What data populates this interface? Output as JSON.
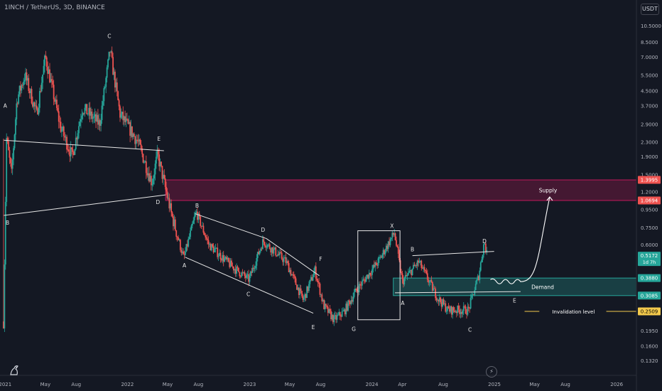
{
  "header": {
    "symbol": "1INCH",
    "sep": " / ",
    "quote": "TetherUS",
    "interval": "3D",
    "exchange": "BINANCE"
  },
  "currency_button": "USDT",
  "icons": {
    "logo": "tradingview-logo-icon",
    "goto": "lightning-icon"
  },
  "colors": {
    "bg": "#141823",
    "up": "#26a69a",
    "down": "#ef5350",
    "supply": "#c2185b",
    "demand": "#26a69a",
    "text": "#d1d4dc",
    "axis": "#b2b5be"
  },
  "chart_data": {
    "type": "candlestick",
    "scale": "log",
    "y_range": [
      0.115,
      12.2
    ],
    "x_range": [
      "2020-12-25",
      "2026-03-01"
    ],
    "x_tick_labels": [
      {
        "date": "2021-01-01",
        "label": "2021"
      },
      {
        "date": "2021-05-01",
        "label": "May"
      },
      {
        "date": "2021-08-01",
        "label": "Aug"
      },
      {
        "date": "2022-01-01",
        "label": "2022"
      },
      {
        "date": "2022-05-01",
        "label": "May"
      },
      {
        "date": "2022-08-01",
        "label": "Aug"
      },
      {
        "date": "2023-01-01",
        "label": "2023"
      },
      {
        "date": "2023-05-01",
        "label": "May"
      },
      {
        "date": "2023-08-01",
        "label": "Aug"
      },
      {
        "date": "2024-01-01",
        "label": "2024"
      },
      {
        "date": "2024-04-01",
        "label": "Apr"
      },
      {
        "date": "2024-08-01",
        "label": "Aug"
      },
      {
        "date": "2025-01-01",
        "label": "2025"
      },
      {
        "date": "2025-05-01",
        "label": "May"
      },
      {
        "date": "2025-08-01",
        "label": "Aug"
      },
      {
        "date": "2026-01-01",
        "label": "2026"
      }
    ],
    "y_tick_labels": [
      "10.5000",
      "8.5000",
      "7.0000",
      "5.5000",
      "4.5000",
      "3.7000",
      "2.9000",
      "2.3000",
      "1.9000",
      "1.5000",
      "1.2000",
      "0.9500",
      "0.7500",
      "0.6000",
      "0.4800",
      "0.3900",
      "0.3100",
      "0.2450",
      "0.1950",
      "0.1600",
      "0.1320"
    ],
    "price_badges": [
      {
        "label": "1.3995",
        "value": 1.3995,
        "color": "#ef5350"
      },
      {
        "label": "1.0694",
        "value": 1.0694,
        "color": "#ef5350"
      },
      {
        "label": "0.5172",
        "sub": "1d 7h",
        "value": 0.5172,
        "color": "#26a69a"
      },
      {
        "label": "0.3880",
        "value": 0.388,
        "color": "#26a69a"
      },
      {
        "label": "0.3085",
        "value": 0.3085,
        "color": "#26a69a"
      },
      {
        "label": "0.2509",
        "value": 0.2509,
        "color": "#f2c94c"
      }
    ],
    "zones": [
      {
        "name": "Supply",
        "top": 1.3995,
        "bottom": 1.0694,
        "from": "2022-04-25",
        "color": "#c2185b"
      },
      {
        "name": "Demand",
        "top": 0.388,
        "bottom": 0.3085,
        "from": "2024-03-05",
        "color": "#26a69a"
      }
    ],
    "invalidation": {
      "label": "Invalidation level",
      "value": 0.2509,
      "from": "2025-05-20"
    },
    "path_anchors": [
      {
        "date": "2020-12-27",
        "price": 0.22
      },
      {
        "date": "2021-01-05",
        "price": 2.4
      },
      {
        "date": "2021-01-20",
        "price": 1.5
      },
      {
        "date": "2021-02-05",
        "price": 4.0
      },
      {
        "date": "2021-03-01",
        "price": 5.5
      },
      {
        "date": "2021-04-05",
        "price": 3.3
      },
      {
        "date": "2021-05-01",
        "price": 7.0
      },
      {
        "date": "2021-06-15",
        "price": 2.8
      },
      {
        "date": "2021-07-20",
        "price": 1.9
      },
      {
        "date": "2021-08-20",
        "price": 3.6
      },
      {
        "date": "2021-10-10",
        "price": 2.9
      },
      {
        "date": "2021-11-10",
        "price": 7.6
      },
      {
        "date": "2021-12-10",
        "price": 3.3
      },
      {
        "date": "2022-02-01",
        "price": 2.3
      },
      {
        "date": "2022-03-15",
        "price": 1.35
      },
      {
        "date": "2022-04-01",
        "price": 1.95
      },
      {
        "date": "2022-05-12",
        "price": 0.9
      },
      {
        "date": "2022-06-18",
        "price": 0.5
      },
      {
        "date": "2022-07-25",
        "price": 0.92
      },
      {
        "date": "2022-09-01",
        "price": 0.6
      },
      {
        "date": "2022-11-10",
        "price": 0.45
      },
      {
        "date": "2022-12-30",
        "price": 0.38
      },
      {
        "date": "2023-02-10",
        "price": 0.63
      },
      {
        "date": "2023-04-20",
        "price": 0.48
      },
      {
        "date": "2023-06-10",
        "price": 0.29
      },
      {
        "date": "2023-07-15",
        "price": 0.43
      },
      {
        "date": "2023-08-10",
        "price": 0.27
      },
      {
        "date": "2023-09-10",
        "price": 0.225
      },
      {
        "date": "2023-10-10",
        "price": 0.25
      },
      {
        "date": "2023-11-15",
        "price": 0.33
      },
      {
        "date": "2024-01-20",
        "price": 0.48
      },
      {
        "date": "2024-03-08",
        "price": 0.7
      },
      {
        "date": "2024-04-01",
        "price": 0.37
      },
      {
        "date": "2024-05-20",
        "price": 0.48
      },
      {
        "date": "2024-07-15",
        "price": 0.3
      },
      {
        "date": "2024-08-15",
        "price": 0.255
      },
      {
        "date": "2024-10-15",
        "price": 0.255
      },
      {
        "date": "2024-11-15",
        "price": 0.4
      },
      {
        "date": "2024-12-02",
        "price": 0.63
      },
      {
        "date": "2024-12-10",
        "price": 0.517
      }
    ],
    "wave_labels": [
      {
        "text": "A",
        "date": "2021-01-01",
        "price": 3.7
      },
      {
        "text": "B",
        "date": "2021-01-08",
        "price": 0.8
      },
      {
        "text": "C",
        "date": "2021-11-08",
        "price": 9.2
      },
      {
        "text": "D",
        "date": "2022-04-02",
        "price": 1.05
      },
      {
        "text": "E",
        "date": "2022-04-05",
        "price": 2.4
      },
      {
        "text": "A",
        "date": "2022-06-20",
        "price": 0.46
      },
      {
        "text": "B",
        "date": "2022-07-28",
        "price": 1.0
      },
      {
        "text": "C",
        "date": "2022-12-28",
        "price": 0.315
      },
      {
        "text": "D",
        "date": "2023-02-10",
        "price": 0.73
      },
      {
        "text": "E",
        "date": "2023-07-10",
        "price": 0.205
      },
      {
        "text": "F",
        "date": "2023-08-01",
        "price": 0.5
      },
      {
        "text": "G",
        "date": "2023-11-08",
        "price": 0.2
      },
      {
        "text": "X",
        "date": "2024-03-01",
        "price": 0.77
      },
      {
        "text": "A",
        "date": "2024-04-02",
        "price": 0.28
      },
      {
        "text": "B",
        "date": "2024-05-01",
        "price": 0.565
      },
      {
        "text": "C",
        "date": "2024-10-20",
        "price": 0.198
      },
      {
        "text": "D",
        "date": "2024-12-02",
        "price": 0.63
      },
      {
        "text": "E",
        "date": "2025-03-02",
        "price": 0.29
      }
    ],
    "trend_lines": [
      {
        "p1": [
          "2020-12-28",
          2.35
        ],
        "p2": [
          "2022-04-20",
          2.05
        ]
      },
      {
        "p1": [
          "2020-12-28",
          0.88
        ],
        "p2": [
          "2022-04-25",
          1.15
        ]
      },
      {
        "p1": [
          "2022-07-22",
          0.9
        ],
        "p2": [
          "2023-02-20",
          0.65
        ]
      },
      {
        "p1": [
          "2023-02-20",
          0.65
        ],
        "p2": [
          "2023-07-28",
          0.4
        ]
      },
      {
        "p1": [
          "2022-06-22",
          0.51
        ],
        "p2": [
          "2023-07-10",
          0.245
        ]
      },
      {
        "p1": [
          "2024-05-01",
          0.52
        ],
        "p2": [
          "2024-12-31",
          0.55
        ]
      },
      {
        "p1": [
          "2024-03-10",
          0.32
        ],
        "p2": [
          "2025-03-20",
          0.325
        ]
      }
    ],
    "projection": [
      [
        "2024-12-20",
        0.38
      ],
      [
        "2025-01-20",
        0.37
      ],
      [
        "2025-03-20",
        0.37
      ],
      [
        "2025-05-10",
        0.52
      ],
      [
        "2025-06-15",
        1.12
      ]
    ],
    "box": {
      "from": "2023-11-20",
      "to": "2024-03-25",
      "top": 0.72,
      "bottom": 0.225
    }
  }
}
